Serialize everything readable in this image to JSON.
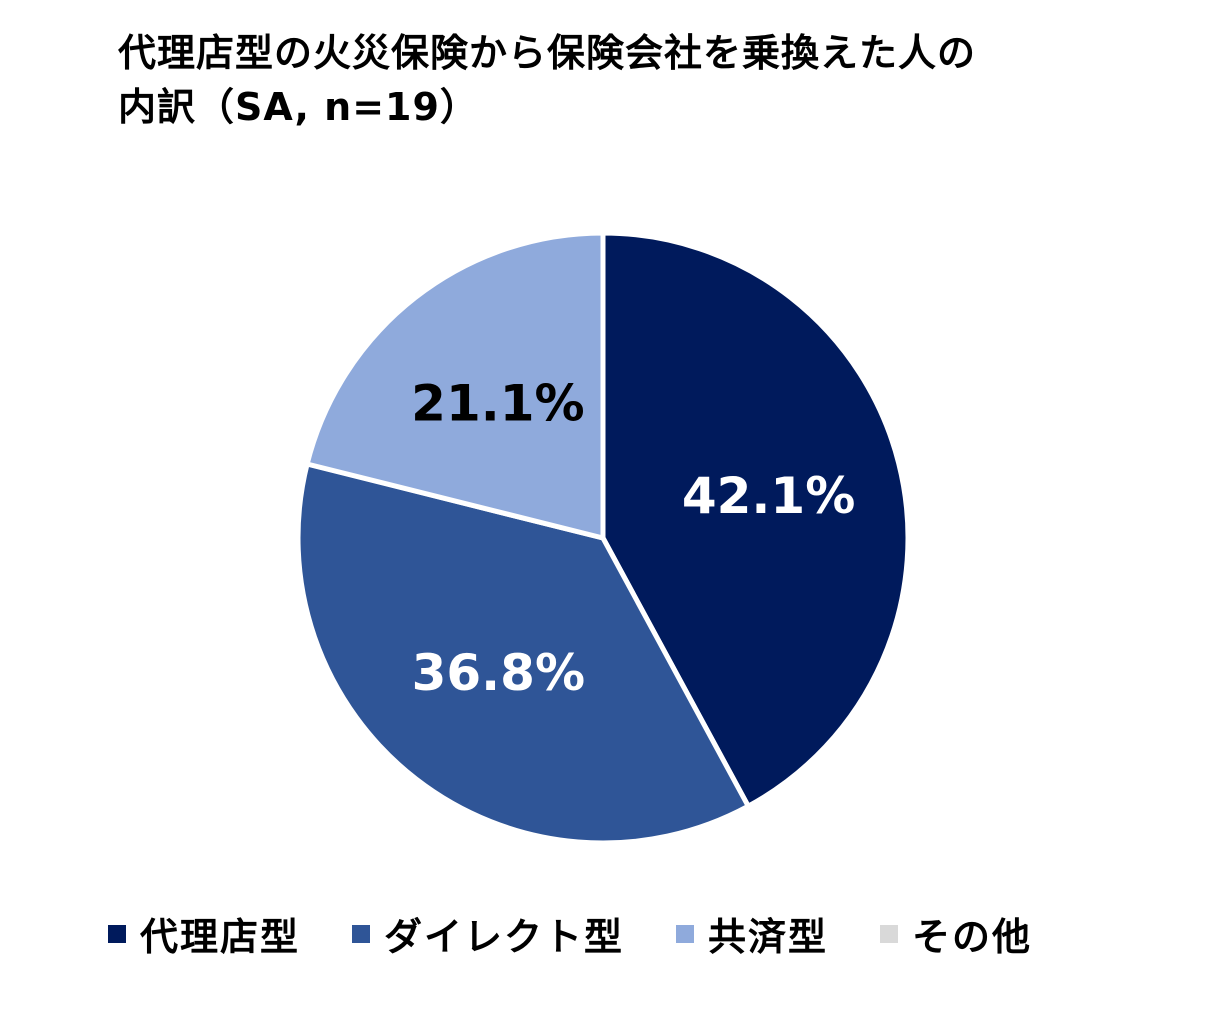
{
  "chart_data": {
    "type": "pie",
    "title_lines": [
      "代理店型の火災保険から保険会社を乗換えた人の",
      "内訳（SA, n=19）"
    ],
    "slices": [
      {
        "name": "代理店型",
        "value": 42.1,
        "label": "42.1%",
        "color": "#001A5C",
        "label_color": "#FFFFFF"
      },
      {
        "name": "ダイレクト型",
        "value": 36.8,
        "label": "36.8%",
        "color": "#2F5597",
        "label_color": "#FFFFFF"
      },
      {
        "name": "共済型",
        "value": 21.1,
        "label": "21.1%",
        "color": "#8FAADC",
        "label_color": "#000000"
      },
      {
        "name": "その他",
        "value": 0,
        "label": "",
        "color": "#D9D9D9",
        "label_color": "#000000"
      }
    ],
    "legend": {
      "placement": "bottom",
      "items": [
        "代理店型",
        "ダイレクト型",
        "共済型",
        "その他"
      ]
    },
    "start_angle_deg": 0,
    "direction": "clockwise"
  }
}
